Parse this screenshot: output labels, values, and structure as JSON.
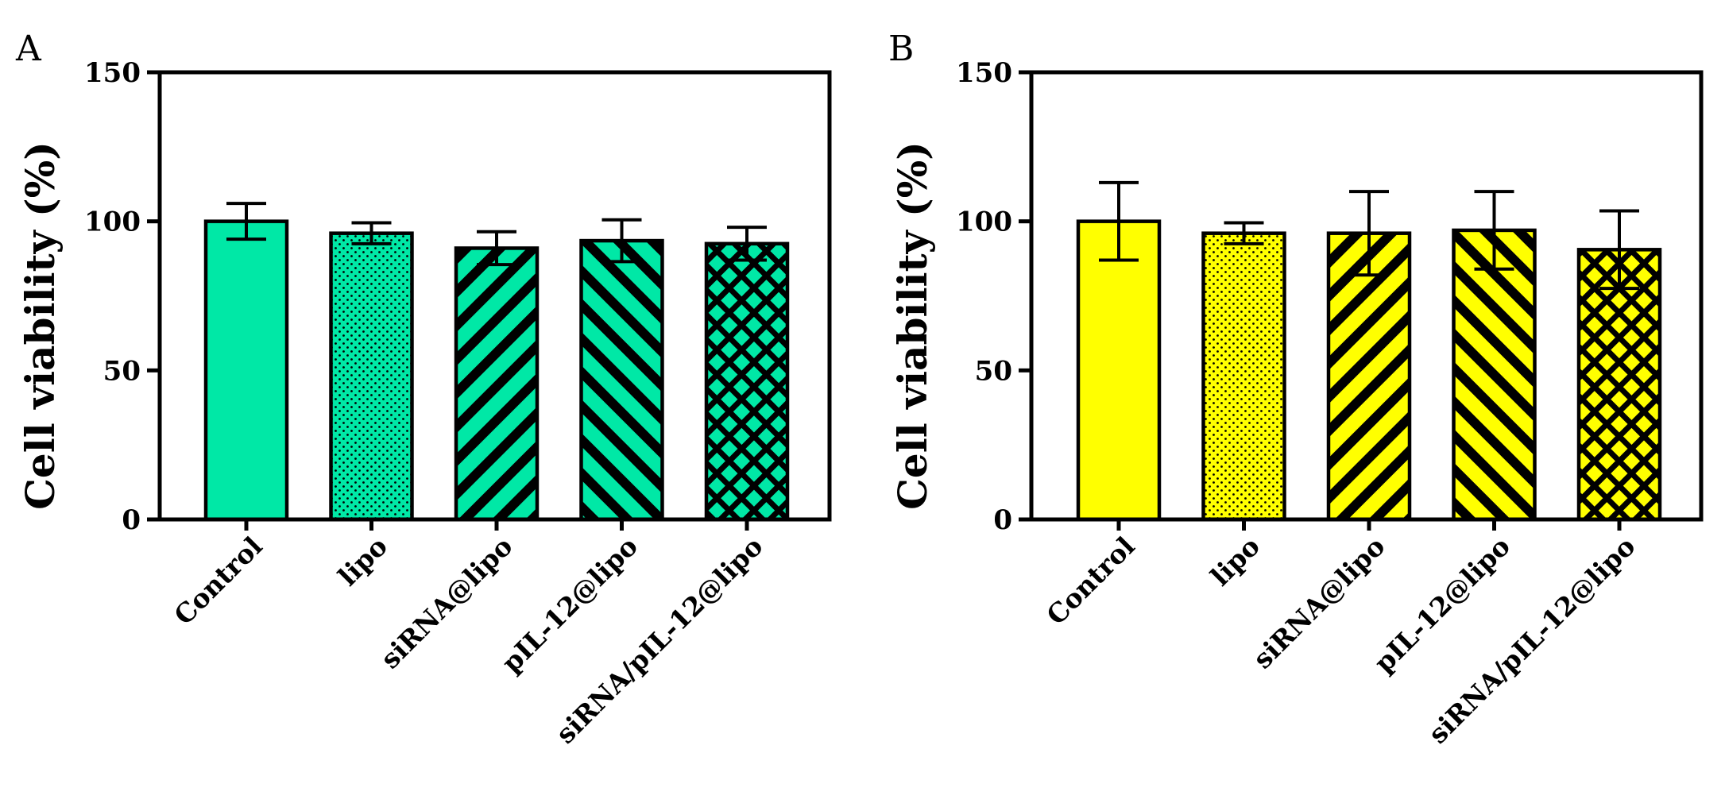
{
  "chart_data": [
    {
      "type": "bar",
      "panel": "A",
      "title": "",
      "xlabel": "",
      "ylabel": "Cell viability (%)",
      "ylim": [
        0,
        150
      ],
      "yticks": [
        0,
        50,
        100,
        150
      ],
      "categories": [
        "Control",
        "lipo",
        "siRNA@lipo",
        "pIL-12@lipo",
        "siRNA/pIL-12@lipo"
      ],
      "values": [
        100,
        96,
        91,
        93.5,
        92.5
      ],
      "errors": [
        6,
        3.5,
        5.5,
        7,
        5.5
      ],
      "patterns": [
        "solid",
        "dots",
        "diagonal-down",
        "diagonal-up",
        "crosshatch"
      ],
      "color": "#00E8A6"
    },
    {
      "type": "bar",
      "panel": "B",
      "title": "",
      "xlabel": "",
      "ylabel": "Cell viability (%)",
      "ylim": [
        0,
        150
      ],
      "yticks": [
        0,
        50,
        100,
        150
      ],
      "categories": [
        "Control",
        "lipo",
        "siRNA@lipo",
        "pIL-12@lipo",
        "siRNA/pIL-12@lipo"
      ],
      "values": [
        100,
        96,
        96,
        97,
        90.5
      ],
      "errors": [
        13,
        3.5,
        14,
        13,
        13
      ],
      "patterns": [
        "solid",
        "dots",
        "diagonal-down",
        "diagonal-up",
        "crosshatch"
      ],
      "color": "#FFFF00"
    }
  ]
}
